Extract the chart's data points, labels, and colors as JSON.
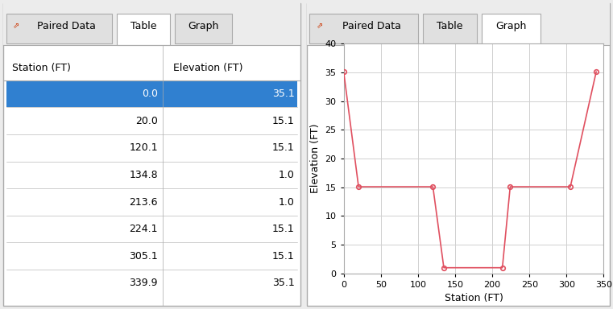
{
  "stations": [
    0.0,
    20.0,
    120.1,
    134.8,
    213.6,
    224.1,
    305.1,
    339.9
  ],
  "elevations": [
    35.1,
    15.1,
    15.1,
    1.0,
    1.0,
    15.1,
    15.1,
    35.1
  ],
  "table_headers": [
    "Station (FT)",
    "Elevation (FT)"
  ],
  "tab_labels_left": [
    "Paired Data",
    "Table",
    "Graph"
  ],
  "tab_labels_right": [
    "Paired Data",
    "Table",
    "Graph"
  ],
  "xlabel": "Station (FT)",
  "ylabel": "Elevation (FT)",
  "xlim": [
    0,
    350
  ],
  "ylim": [
    0,
    40
  ],
  "xticks": [
    0,
    50,
    100,
    150,
    200,
    250,
    300,
    350
  ],
  "yticks": [
    0,
    5,
    10,
    15,
    20,
    25,
    30,
    35,
    40
  ],
  "line_color": "#e05060",
  "marker_color": "#e05060",
  "bg_color": "#ececec",
  "panel_bg": "#ffffff",
  "tab_active_bg": "#ffffff",
  "tab_inactive_bg": "#e0e0e0",
  "highlight_row_color": "#3080d0",
  "grid_color": "#d0d0d0",
  "border_color": "#aaaaaa",
  "font_size": 9,
  "axis_label_fontsize": 9,
  "tick_fontsize": 8
}
